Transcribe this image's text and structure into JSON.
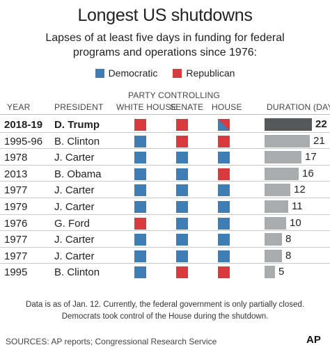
{
  "title": "Longest US shutdowns",
  "subtitle": "Lapses of at least five days in funding for federal programs and operations since 1976:",
  "legend": [
    {
      "label": "Democratic",
      "color": "#3f7db5"
    },
    {
      "label": "Republican",
      "color": "#d93a3e"
    }
  ],
  "headers": {
    "party_controlling": "PARTY CONTROLLING",
    "year": "YEAR",
    "president": "PRESIDENT",
    "white_house": "WHITE HOUSE",
    "senate": "SENATE",
    "house": "HOUSE",
    "duration": "DURATION (DAYS)"
  },
  "chart_data": {
    "type": "bar",
    "title": "Longest US shutdowns",
    "categories": [
      "2018-19",
      "1995-96",
      "1978",
      "2013",
      "1977",
      "1979",
      "1976",
      "1977",
      "1977",
      "1995"
    ],
    "series": [
      {
        "values": [
          22,
          21,
          17,
          16,
          12,
          11,
          10,
          8,
          8,
          5
        ]
      }
    ],
    "rows": [
      {
        "year": "2018-19",
        "president": "D. Trump",
        "white_house": "R",
        "senate": "R",
        "house": "split",
        "duration": 22,
        "highlight": true
      },
      {
        "year": "1995-96",
        "president": "B. Clinton",
        "white_house": "D",
        "senate": "R",
        "house": "R",
        "duration": 21
      },
      {
        "year": "1978",
        "president": "J. Carter",
        "white_house": "D",
        "senate": "D",
        "house": "D",
        "duration": 17
      },
      {
        "year": "2013",
        "president": "B. Obama",
        "white_house": "D",
        "senate": "D",
        "house": "R",
        "duration": 16
      },
      {
        "year": "1977",
        "president": "J. Carter",
        "white_house": "D",
        "senate": "D",
        "house": "D",
        "duration": 12
      },
      {
        "year": "1979",
        "president": "J. Carter",
        "white_house": "D",
        "senate": "D",
        "house": "D",
        "duration": 11
      },
      {
        "year": "1976",
        "president": "G. Ford",
        "white_house": "R",
        "senate": "D",
        "house": "D",
        "duration": 10
      },
      {
        "year": "1977",
        "president": "J. Carter",
        "white_house": "D",
        "senate": "D",
        "house": "D",
        "duration": 8
      },
      {
        "year": "1977",
        "president": "J. Carter",
        "white_house": "D",
        "senate": "D",
        "house": "D",
        "duration": 8
      },
      {
        "year": "1995",
        "president": "B. Clinton",
        "white_house": "D",
        "senate": "R",
        "house": "R",
        "duration": 5
      }
    ],
    "xlim": [
      0,
      22
    ],
    "bar_color": "#a9abad",
    "highlight_bar_color": "#555759"
  },
  "note_lines": [
    "Data is as of Jan. 12. Currently, the federal government is only partially closed.",
    "Democrats took control of the House during the shutdown."
  ],
  "sources": "SOURCES: AP reports; Congressional Research Service",
  "logo": "AP"
}
